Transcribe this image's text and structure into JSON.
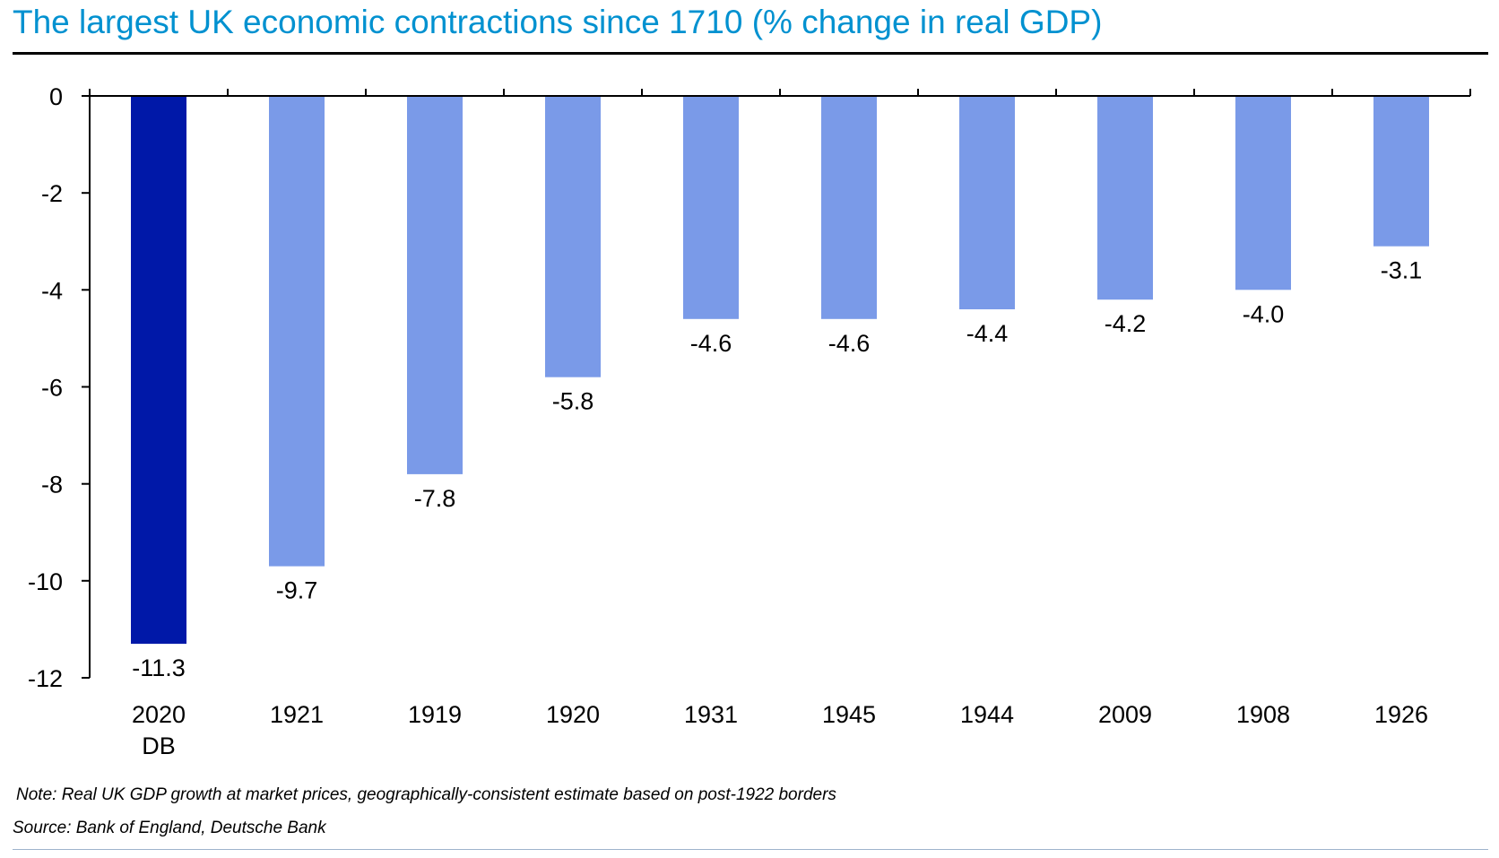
{
  "title": "The largest UK economic contractions since 1710 (% change in real GDP)",
  "colors": {
    "title": "#0091d0",
    "highlight_bar": "#0018a8",
    "bar": "#7a9ae8",
    "axis": "#000000"
  },
  "chart_data": {
    "type": "bar",
    "categories": [
      "2020 DB",
      "1921",
      "1919",
      "1920",
      "1931",
      "1945",
      "1944",
      "2009",
      "1908",
      "1926"
    ],
    "category_lines": [
      [
        "2020",
        "DB"
      ],
      [
        "1921"
      ],
      [
        "1919"
      ],
      [
        "1920"
      ],
      [
        "1931"
      ],
      [
        "1945"
      ],
      [
        "1944"
      ],
      [
        "2009"
      ],
      [
        "1908"
      ],
      [
        "1926"
      ]
    ],
    "values": [
      -11.3,
      -9.7,
      -7.8,
      -5.8,
      -4.6,
      -4.6,
      -4.4,
      -4.2,
      -4.0,
      -3.1
    ],
    "data_labels": [
      "-11.3",
      "-9.7",
      "-7.8",
      "-5.8",
      "-4.6",
      "-4.6",
      "-4.4",
      "-4.2",
      "-4.0",
      "-3.1"
    ],
    "highlight_index": 0,
    "ylim": [
      -12,
      0
    ],
    "yticks": [
      0,
      -2,
      -4,
      -6,
      -8,
      -10,
      -12
    ],
    "ytick_labels": [
      "0",
      "-2",
      "-4",
      "-6",
      "-8",
      "-10",
      "-12"
    ],
    "xlabel": "",
    "ylabel": "",
    "grid": false,
    "legend": "none"
  },
  "note": "Note: Real UK GDP growth at market prices, geographically-consistent estimate based on post-1922 borders",
  "source": "Source: Bank of England, Deutsche Bank"
}
